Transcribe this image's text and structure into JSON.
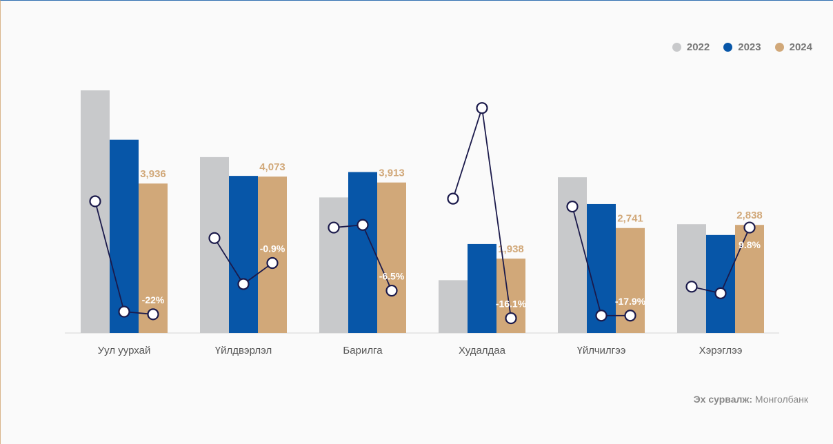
{
  "legend": {
    "items": [
      {
        "label": "2022",
        "color": "#c8c9cb"
      },
      {
        "label": "2023",
        "color": "#0756a8"
      },
      {
        "label": "2024",
        "color": "#d1a879"
      }
    ]
  },
  "source": {
    "label": "Эх сурвалж:",
    "value": "Монголбанк"
  },
  "chart_data": {
    "type": "bar",
    "categories": [
      "Уул уурхай",
      "Үйлдвэрлэл",
      "Барилга",
      "Худалдаа",
      "Үйлчилгээ",
      "Хэрэглээ"
    ],
    "series": [
      {
        "name": "2022",
        "color": "#c8c9cb",
        "values": [
          6980,
          5060,
          3900,
          1520,
          4480,
          3130
        ]
      },
      {
        "name": "2023",
        "color": "#0756a8",
        "values": [
          5560,
          4520,
          4630,
          2560,
          3710,
          2820
        ]
      },
      {
        "name": "2024",
        "color": "#d1a879",
        "values": [
          4300,
          4500,
          4330,
          2140,
          3020,
          3110
        ]
      }
    ],
    "bar_labels": [
      "3,936",
      "4,073",
      "3,913",
      "1,938",
      "2,741",
      "2,838"
    ],
    "ylim": [
      0,
      7200
    ],
    "growth_line": {
      "color": "#1b1a4b",
      "values": [
        [
          40,
          -44,
          -46
        ],
        [
          12,
          -23,
          -7
        ],
        [
          20,
          22,
          -28
        ],
        [
          42,
          111,
          -49
        ],
        [
          36,
          -47,
          -47
        ],
        [
          -25,
          -30,
          20
        ]
      ],
      "ylim": [
        -55,
        125
      ],
      "labels": [
        "-22%",
        "-0.9%",
        "-6.5%",
        "-16.1%",
        "-17.9%",
        "9.8%"
      ]
    }
  }
}
